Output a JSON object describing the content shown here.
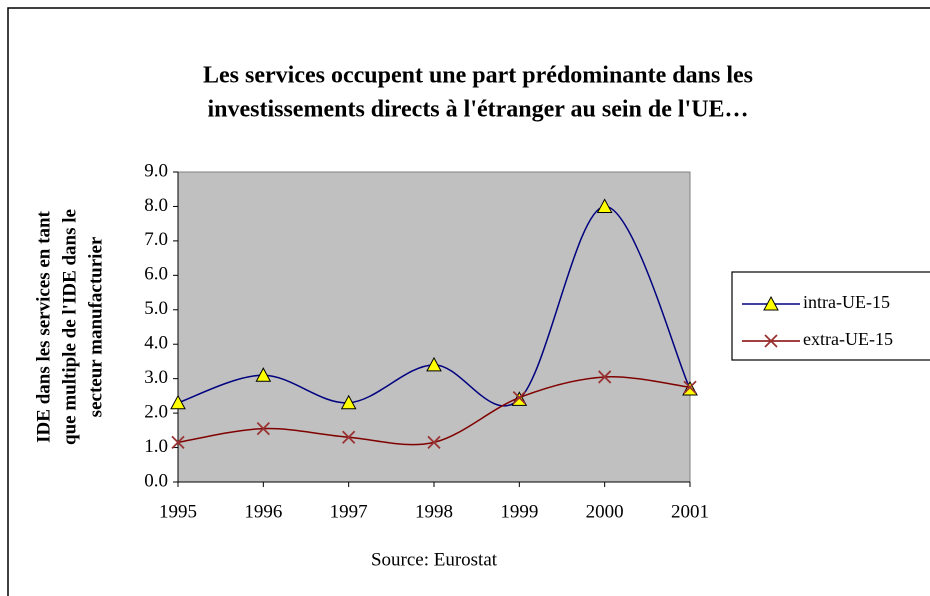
{
  "chart_data": {
    "type": "line",
    "title": [
      "Les services occupent une part prédominante dans les",
      "investissements directs à l'étranger au sein de l'UE…"
    ],
    "y_label": [
      "IDE dans les services en tant",
      "que multiple de l'IDE dans le",
      "secteur manufacturier"
    ],
    "source": "Source: Eurostat",
    "categories": [
      "1995",
      "1996",
      "1997",
      "1998",
      "1999",
      "2000",
      "2001"
    ],
    "series": [
      {
        "name": "intra-UE-15",
        "color": "#000080",
        "marker_color": "#ffff00",
        "marker": "triangle",
        "values": [
          2.3,
          3.1,
          2.3,
          3.4,
          2.4,
          8.0,
          2.7
        ]
      },
      {
        "name": "extra-UE-15",
        "color": "#800000",
        "marker_color": "#993333",
        "marker": "x",
        "values": [
          1.15,
          1.55,
          1.3,
          1.15,
          2.45,
          3.05,
          2.75
        ]
      }
    ],
    "ylim": [
      0,
      9
    ],
    "yticks": [
      {
        "value": 0,
        "label": "0.0"
      },
      {
        "value": 1,
        "label": "1.0"
      },
      {
        "value": 2,
        "label": "2.0"
      },
      {
        "value": 3,
        "label": "3.0"
      },
      {
        "value": 4,
        "label": "4.0"
      },
      {
        "value": 5,
        "label": "5.0"
      },
      {
        "value": 6,
        "label": "6.0"
      },
      {
        "value": 7,
        "label": "7.0"
      },
      {
        "value": 8,
        "label": "8.0"
      },
      {
        "value": 9,
        "label": "9.0"
      }
    ],
    "smooth": true,
    "plot_background": "#c0c0c0"
  }
}
